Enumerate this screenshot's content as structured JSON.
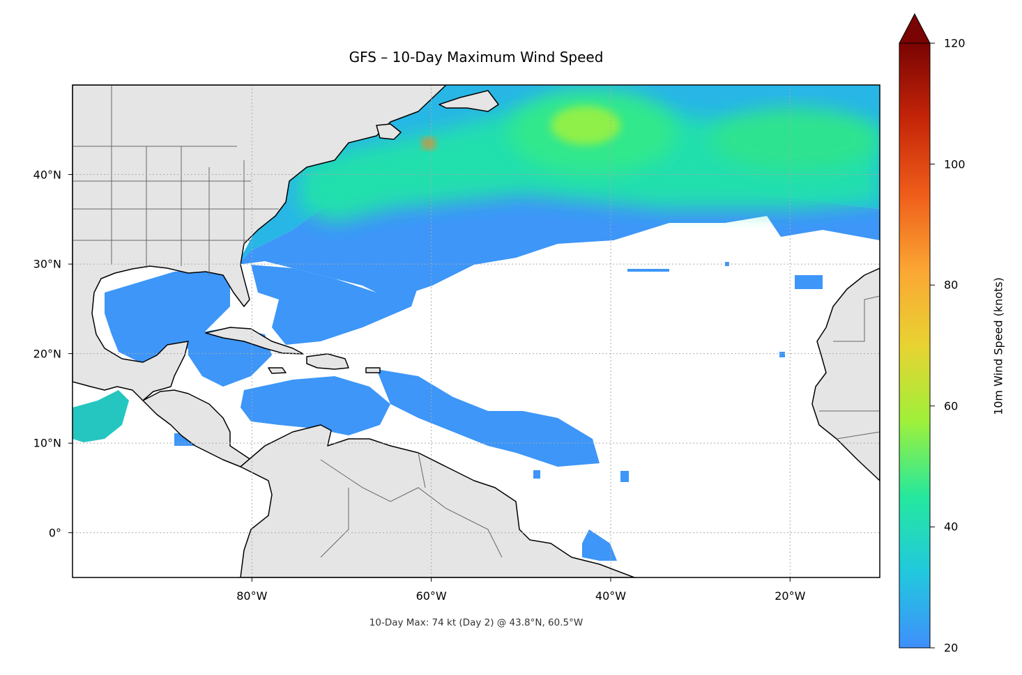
{
  "title": "GFS – 10-Day Maximum Wind Speed",
  "footnote": "10-Day Max: 74 kt (Day 2) @ 43.8°N, 60.5°W",
  "map": {
    "projection": "plate-carree",
    "lon_range": [
      -100,
      -10
    ],
    "lat_range": [
      -5,
      50
    ],
    "gridlines": true,
    "land_color": "#e5e5e5",
    "ocean_color": "#ffffff",
    "x_ticks": [
      {
        "value": -80,
        "label": "80°W"
      },
      {
        "value": -60,
        "label": "60°W"
      },
      {
        "value": -40,
        "label": "40°W"
      },
      {
        "value": -20,
        "label": "20°W"
      }
    ],
    "y_ticks": [
      {
        "value": 40,
        "label": "40°N"
      },
      {
        "value": 30,
        "label": "30°N"
      },
      {
        "value": 20,
        "label": "20°N"
      },
      {
        "value": 10,
        "label": "10°N"
      },
      {
        "value": 0,
        "label": "0°"
      }
    ]
  },
  "colorbar": {
    "label": "10m Wind Speed (knots)",
    "min": 20,
    "max": 120,
    "extend": "max",
    "colormap": "turbo",
    "ticks": [
      {
        "value": 20,
        "label": "20"
      },
      {
        "value": 40,
        "label": "40"
      },
      {
        "value": 60,
        "label": "60"
      },
      {
        "value": 80,
        "label": "80"
      },
      {
        "value": 100,
        "label": "100"
      },
      {
        "value": 120,
        "label": "120"
      }
    ],
    "stops": [
      "#3f8ffc",
      "#22c8de",
      "#25e89e",
      "#9ff03a",
      "#e8d332",
      "#fba634",
      "#ef5d1a",
      "#c52508",
      "#7a0403"
    ]
  },
  "chart_data": {
    "type": "heatmap",
    "title": "GFS – 10-Day Maximum Wind Speed",
    "units": "knots",
    "value_range": [
      20,
      120
    ],
    "max_value": 74,
    "max_day": 2,
    "max_location": {
      "lat": 43.8,
      "lon": -60.5
    },
    "regions": [
      {
        "lon": -60.5,
        "lat": 43.8,
        "value": 74
      },
      {
        "lon": -42,
        "lat": 46,
        "value": 50
      },
      {
        "lon": -60,
        "lat": 40,
        "value": 38
      },
      {
        "lon": -45,
        "lat": 38,
        "value": 35
      },
      {
        "lon": -20,
        "lat": 40,
        "value": 34
      },
      {
        "lon": -70,
        "lat": 33,
        "value": 28
      },
      {
        "lon": -88,
        "lat": 24,
        "value": 24
      },
      {
        "lon": -72,
        "lat": 14,
        "value": 24
      },
      {
        "lon": -45,
        "lat": 11,
        "value": 24
      },
      {
        "lon": -95,
        "lat": 14,
        "value": 30
      },
      {
        "lon": -42,
        "lat": -2,
        "value": 24
      }
    ]
  }
}
